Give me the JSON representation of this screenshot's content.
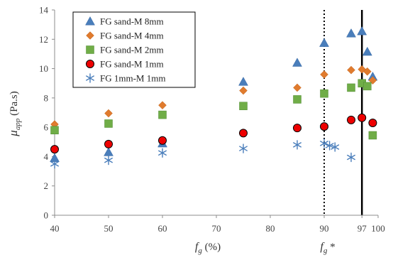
{
  "chart_data": {
    "type": "scatter",
    "title": "",
    "xlabel": "f_g (%)",
    "xlabel_main": "f",
    "xlabel_sub": "g",
    "xlabel_unit": " (%)",
    "ylabel": "μ_app (Pa.s)",
    "ylabel_main": "μ",
    "ylabel_sub": "app",
    "ylabel_unit": " (Pa.s)",
    "fg_star_label": "f_g *",
    "fg_star_main": "f",
    "fg_star_sub": "g",
    "fg_star_suffix": " *",
    "xlim": [
      40,
      100
    ],
    "ylim": [
      0,
      14
    ],
    "x_ticks": [
      {
        "value": 40,
        "label": "40"
      },
      {
        "value": 50,
        "label": "50"
      },
      {
        "value": 60,
        "label": "60"
      },
      {
        "value": 70,
        "label": "70"
      },
      {
        "value": 80,
        "label": "80"
      },
      {
        "value": 90,
        "label": "90"
      },
      {
        "value": 97,
        "label": "97"
      },
      {
        "value": 100,
        "label": "100"
      }
    ],
    "y_ticks": [
      {
        "value": 0,
        "label": "0"
      },
      {
        "value": 2,
        "label": "2"
      },
      {
        "value": 4,
        "label": "4"
      },
      {
        "value": 6,
        "label": "6"
      },
      {
        "value": 8,
        "label": "8"
      },
      {
        "value": 10,
        "label": "10"
      },
      {
        "value": 12,
        "label": "12"
      },
      {
        "value": 14,
        "label": "14"
      }
    ],
    "grid": false,
    "legend_position": "top-left",
    "vertical_lines": [
      {
        "x": 90,
        "style": "dotted"
      },
      {
        "x": 97,
        "style": "solid"
      }
    ],
    "series": [
      {
        "name": "FG sand-M 8mm",
        "marker": "triangle",
        "color": "#4a7ebb",
        "points": [
          [
            40,
            3.9
          ],
          [
            50,
            4.3
          ],
          [
            60,
            4.9
          ],
          [
            75,
            9.1
          ],
          [
            85,
            10.4
          ],
          [
            90,
            11.75
          ],
          [
            95,
            12.4
          ],
          [
            97,
            12.55
          ],
          [
            98,
            11.15
          ],
          [
            99,
            9.45
          ]
        ]
      },
      {
        "name": "FG sand-M 4mm",
        "marker": "diamond",
        "color": "#e07b2e",
        "points": [
          [
            40,
            6.2
          ],
          [
            50,
            6.95
          ],
          [
            60,
            7.5
          ],
          [
            75,
            8.5
          ],
          [
            85,
            8.7
          ],
          [
            90,
            9.6
          ],
          [
            95,
            9.9
          ],
          [
            97,
            9.95
          ],
          [
            98,
            9.8
          ],
          [
            99,
            9.2
          ]
        ]
      },
      {
        "name": "FG sand-M 2mm",
        "marker": "square",
        "color": "#70ad47",
        "points": [
          [
            40,
            5.8
          ],
          [
            50,
            6.25
          ],
          [
            60,
            6.85
          ],
          [
            75,
            7.45
          ],
          [
            85,
            7.9
          ],
          [
            90,
            8.3
          ],
          [
            95,
            8.7
          ],
          [
            97,
            9.0
          ],
          [
            98,
            8.8
          ],
          [
            99,
            5.45
          ]
        ]
      },
      {
        "name": "FG sand-M 1mm",
        "marker": "circle",
        "color": "#ee0000",
        "points": [
          [
            40,
            4.5
          ],
          [
            50,
            4.85
          ],
          [
            60,
            5.1
          ],
          [
            75,
            5.6
          ],
          [
            85,
            5.95
          ],
          [
            90,
            6.05
          ],
          [
            95,
            6.5
          ],
          [
            97,
            6.65
          ],
          [
            99,
            6.3
          ]
        ]
      },
      {
        "name": "FG 1mm-M 1mm",
        "marker": "asterisk",
        "color": "#4a7ebb",
        "points": [
          [
            40,
            3.5
          ],
          [
            50,
            3.75
          ],
          [
            60,
            4.25
          ],
          [
            75,
            4.55
          ],
          [
            85,
            4.8
          ],
          [
            90,
            4.9
          ],
          [
            91,
            4.75
          ],
          [
            92,
            4.65
          ],
          [
            95,
            3.95
          ]
        ]
      }
    ]
  }
}
